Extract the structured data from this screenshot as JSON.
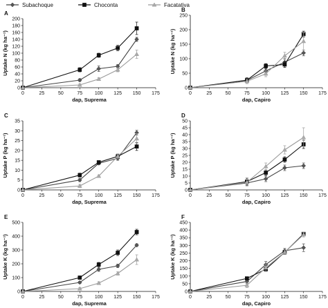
{
  "legend": {
    "items": [
      {
        "name": "Subachoque",
        "color": "#555555",
        "marker": "diamond",
        "stroke": "#444444"
      },
      {
        "name": "Choconta",
        "color": "#111111",
        "marker": "square",
        "stroke": "#111111"
      },
      {
        "name": "Facatativa",
        "color": "#aaaaaa",
        "marker": "triangle",
        "stroke": "#9a9a9a"
      }
    ]
  },
  "chart_data": [
    {
      "type": "line",
      "panel": "A",
      "xlabel": "dap, Suprema",
      "ylabel": "Uptake N (kg ha⁻¹)",
      "xlim": [
        0,
        175
      ],
      "ylim": [
        0,
        200
      ],
      "xticks": [
        0,
        25,
        50,
        75,
        100,
        125,
        150,
        175
      ],
      "yticks": [
        0,
        20,
        40,
        60,
        80,
        100,
        120,
        140,
        160,
        180,
        200
      ],
      "x": [
        0,
        75,
        100,
        125,
        150
      ],
      "series": [
        {
          "name": "Subachoque",
          "values": [
            0,
            22,
            55,
            62,
            140
          ],
          "err": [
            0,
            4,
            8,
            5,
            6
          ]
        },
        {
          "name": "Choconta",
          "values": [
            0,
            52,
            94,
            115,
            172
          ],
          "err": [
            0,
            6,
            6,
            8,
            18
          ]
        },
        {
          "name": "Facatativa",
          "values": [
            0,
            8,
            25,
            52,
            97
          ],
          "err": [
            0,
            3,
            4,
            6,
            12
          ]
        }
      ]
    },
    {
      "type": "line",
      "panel": "B",
      "xlabel": "dap, Capiro",
      "ylabel": "Uptake N (kg ha⁻¹)",
      "xlim": [
        0,
        175
      ],
      "ylim": [
        0,
        250
      ],
      "xticks": [
        0,
        25,
        50,
        75,
        100,
        125,
        150,
        175
      ],
      "yticks": [
        0,
        50,
        100,
        150,
        200,
        250
      ],
      "x": [
        0,
        75,
        100,
        125,
        150
      ],
      "series": [
        {
          "name": "Subachoque",
          "values": [
            0,
            25,
            58,
            88,
            120
          ],
          "err": [
            0,
            8,
            8,
            12,
            10
          ]
        },
        {
          "name": "Choconta",
          "values": [
            0,
            26,
            75,
            80,
            185
          ],
          "err": [
            0,
            8,
            8,
            10,
            10
          ]
        },
        {
          "name": "Facatativa",
          "values": [
            0,
            22,
            48,
            110,
            160
          ],
          "err": [
            0,
            8,
            10,
            12,
            30
          ]
        }
      ]
    },
    {
      "type": "line",
      "panel": "C",
      "xlabel": "dap, Suprema",
      "ylabel": "Uptake P (kg ha⁻¹)",
      "xlim": [
        0,
        175
      ],
      "ylim": [
        0,
        35
      ],
      "xticks": [
        0,
        25,
        50,
        75,
        100,
        125,
        150,
        175
      ],
      "yticks": [
        0,
        5,
        10,
        15,
        20,
        25,
        30,
        35
      ],
      "x": [
        0,
        75,
        100,
        125,
        150
      ],
      "series": [
        {
          "name": "Subachoque",
          "values": [
            0,
            5,
            13.5,
            16,
            29
          ],
          "err": [
            0,
            0.8,
            0.8,
            1,
            1.2
          ]
        },
        {
          "name": "Choconta",
          "values": [
            0,
            7.5,
            14,
            17,
            22
          ],
          "err": [
            0,
            1,
            0.8,
            1.2,
            2
          ]
        },
        {
          "name": "Facatativa",
          "values": [
            0,
            2,
            7,
            17,
            26
          ],
          "err": [
            0,
            0.8,
            0.6,
            1.2,
            2.5
          ]
        }
      ]
    },
    {
      "type": "line",
      "panel": "D",
      "xlabel": "dap, Capiro",
      "ylabel": "Uptake P (kg ha⁻¹)",
      "xlim": [
        0,
        175
      ],
      "ylim": [
        0,
        50
      ],
      "xticks": [
        0,
        25,
        50,
        75,
        100,
        125,
        150,
        175
      ],
      "yticks": [
        0,
        5,
        10,
        15,
        20,
        25,
        30,
        35,
        40,
        45,
        50
      ],
      "x": [
        0,
        75,
        100,
        125,
        150
      ],
      "series": [
        {
          "name": "Subachoque",
          "values": [
            0,
            5,
            8,
            16,
            17.5
          ],
          "err": [
            0,
            2,
            2,
            2,
            2
          ]
        },
        {
          "name": "Choconta",
          "values": [
            0,
            6,
            12.5,
            22,
            33
          ],
          "err": [
            0,
            2.5,
            2,
            2,
            3
          ]
        },
        {
          "name": "Facatativa",
          "values": [
            0,
            5.5,
            17,
            29,
            38
          ],
          "err": [
            0,
            2,
            2.5,
            3,
            7
          ]
        }
      ]
    },
    {
      "type": "line",
      "panel": "E",
      "xlabel": "dap, Suprema",
      "ylabel": "Uptake K (kg ha⁻¹)",
      "xlim": [
        0,
        175
      ],
      "ylim": [
        0,
        500
      ],
      "xticks": [
        0,
        25,
        50,
        75,
        100,
        125,
        150,
        175
      ],
      "yticks": [
        0,
        100,
        200,
        300,
        400,
        500
      ],
      "x": [
        0,
        75,
        100,
        125,
        150
      ],
      "series": [
        {
          "name": "Subachoque",
          "values": [
            0,
            65,
            160,
            185,
            335
          ],
          "err": [
            0,
            8,
            15,
            12,
            10
          ]
        },
        {
          "name": "Choconta",
          "values": [
            0,
            100,
            195,
            280,
            430
          ],
          "err": [
            0,
            12,
            15,
            20,
            20
          ]
        },
        {
          "name": "Facatativa",
          "values": [
            0,
            20,
            60,
            130,
            230
          ],
          "err": [
            0,
            8,
            10,
            12,
            35
          ]
        }
      ]
    },
    {
      "type": "line",
      "panel": "F",
      "xlabel": "dap, Capiro",
      "ylabel": "Uptake K (kg ha⁻¹)",
      "xlim": [
        0,
        175
      ],
      "ylim": [
        0,
        450
      ],
      "xticks": [
        0,
        25,
        50,
        75,
        100,
        125,
        150,
        175
      ],
      "yticks": [
        0,
        50,
        100,
        150,
        200,
        250,
        300,
        350,
        400,
        450
      ],
      "x": [
        0,
        75,
        100,
        125,
        150
      ],
      "series": [
        {
          "name": "Subachoque",
          "values": [
            0,
            65,
            175,
            265,
            285
          ],
          "err": [
            0,
            15,
            20,
            15,
            25
          ]
        },
        {
          "name": "Choconta",
          "values": [
            0,
            85,
            145,
            255,
            375
          ],
          "err": [
            0,
            10,
            15,
            15,
            10
          ]
        },
        {
          "name": "Facatativa",
          "values": [
            0,
            40,
            155,
            255,
            370
          ],
          "err": [
            0,
            15,
            25,
            15,
            15
          ]
        }
      ]
    }
  ]
}
